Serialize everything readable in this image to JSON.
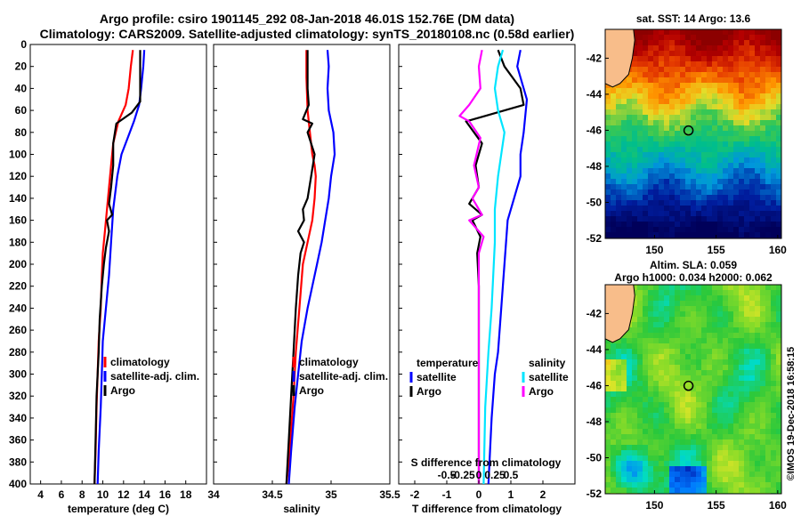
{
  "header": {
    "title_line1": "Argo profile: csiro 1901145_292 08-Jan-2018 46.01S 152.76E (DM data)",
    "title_line2": "Climatology: CARS2009. Satellite-adjusted climatology: synTS_20180108.nc (0.58d earlier)"
  },
  "side_text": "©IMOS 19-Dec-2018 16:58:15",
  "colors": {
    "climatology": "#ff0000",
    "satellite": "#0000ff",
    "argo": "#000000",
    "s_satellite": "#00e5ff",
    "s_argo": "#ff00ff",
    "land": "#f8bd8a"
  },
  "chart_data": [
    {
      "type": "line",
      "name": "temperature-profile",
      "xlabel": "temperature (deg C)",
      "xlim": [
        3,
        20
      ],
      "xticks": [
        4,
        6,
        8,
        10,
        12,
        14,
        16,
        18
      ],
      "ylim": [
        400,
        0
      ],
      "yticks": [
        0,
        20,
        40,
        60,
        80,
        100,
        120,
        140,
        160,
        180,
        200,
        220,
        240,
        260,
        280,
        300,
        320,
        340,
        360,
        380,
        400
      ],
      "legend": {
        "position": "lower-right",
        "entries": [
          "climatology",
          "satellite-adj. clim.",
          "Argo"
        ]
      },
      "series": [
        {
          "name": "climatology",
          "color": "#ff0000",
          "x": [
            12.9,
            12.7,
            12.5,
            12.2,
            11.5,
            11.0,
            10.8,
            10.6,
            10.4,
            10.2,
            10.0,
            9.9,
            9.8,
            9.6,
            9.5,
            9.4,
            9.3,
            9.2
          ],
          "y": [
            5,
            20,
            40,
            55,
            70,
            90,
            110,
            130,
            150,
            170,
            190,
            210,
            240,
            270,
            300,
            330,
            370,
            400
          ]
        },
        {
          "name": "satellite-adj. clim.",
          "color": "#0000ff",
          "x": [
            14.0,
            13.9,
            13.7,
            13.5,
            13.0,
            12.4,
            11.8,
            11.4,
            11.0,
            10.8,
            10.6,
            10.3,
            10.0,
            9.9,
            9.8,
            9.6,
            9.5
          ],
          "y": [
            5,
            20,
            40,
            55,
            70,
            85,
            100,
            120,
            150,
            180,
            210,
            240,
            270,
            300,
            330,
            370,
            400
          ]
        },
        {
          "name": "Argo",
          "color": "#000000",
          "x": [
            13.6,
            13.6,
            13.6,
            13.6,
            12.8,
            11.3,
            11.0,
            11.0,
            10.8,
            10.6,
            10.9,
            10.4,
            10.6,
            10.3,
            10.1,
            9.9,
            9.7,
            9.6,
            9.4,
            9.3,
            9.2
          ],
          "y": [
            5,
            20,
            40,
            52,
            62,
            72,
            90,
            110,
            130,
            145,
            155,
            160,
            170,
            185,
            200,
            220,
            250,
            280,
            320,
            360,
            400
          ]
        }
      ]
    },
    {
      "type": "line",
      "name": "salinity-profile",
      "xlabel": "salinity",
      "xlim": [
        34,
        35.5
      ],
      "xticks": [
        34,
        34.5,
        35,
        35.5
      ],
      "ylim": [
        400,
        0
      ],
      "legend": {
        "position": "lower-right",
        "entries": [
          "climatology",
          "satellite-adj. clim.",
          "Argo"
        ]
      },
      "series": [
        {
          "name": "climatology",
          "color": "#ff0000",
          "x": [
            34.79,
            34.79,
            34.8,
            34.82,
            34.84,
            34.86,
            34.87,
            34.86,
            34.84,
            34.8,
            34.76,
            34.73,
            34.7,
            34.68,
            34.66,
            34.64,
            34.62
          ],
          "y": [
            5,
            30,
            60,
            80,
            100,
            110,
            120,
            140,
            160,
            180,
            200,
            240,
            280,
            320,
            350,
            380,
            400
          ]
        },
        {
          "name": "satellite-adj. clim.",
          "color": "#0000ff",
          "x": [
            34.97,
            34.98,
            34.97,
            34.98,
            35.02,
            35.03,
            35.0,
            34.98,
            34.95,
            34.92,
            34.88,
            34.84,
            34.8,
            34.75,
            34.72,
            34.69,
            34.66,
            34.64
          ],
          "y": [
            5,
            20,
            40,
            60,
            80,
            100,
            120,
            140,
            160,
            180,
            200,
            220,
            240,
            270,
            300,
            330,
            370,
            400
          ]
        },
        {
          "name": "Argo",
          "color": "#000000",
          "x": [
            34.8,
            34.8,
            34.8,
            34.81,
            34.76,
            34.84,
            34.8,
            34.86,
            34.83,
            34.8,
            34.76,
            34.77,
            34.72,
            34.77,
            34.74,
            34.72,
            34.7,
            34.68,
            34.66,
            34.64,
            34.62
          ],
          "y": [
            5,
            20,
            40,
            55,
            68,
            72,
            80,
            100,
            120,
            140,
            150,
            160,
            170,
            180,
            190,
            210,
            240,
            280,
            320,
            360,
            400
          ]
        }
      ]
    },
    {
      "type": "line",
      "name": "difference-profile",
      "xlabel": "T difference from climatology",
      "secondary_xlabel": "S difference from climatology",
      "xlim": [
        -2.5,
        3.0
      ],
      "xticks": [
        -2,
        -1,
        0,
        1,
        2
      ],
      "secondary_xticks": [
        "-0.5",
        "-0.25",
        "0",
        "0.25",
        "0.5"
      ],
      "ylim": [
        400,
        0
      ],
      "legend": {
        "position": "lower",
        "temperature_title": "temperature",
        "salinity_title": "salinity",
        "entries": [
          "satellite",
          "Argo"
        ]
      },
      "series": [
        {
          "name": "T satellite",
          "color": "#0000ff",
          "x": [
            1.3,
            1.2,
            1.3,
            1.5,
            1.4,
            1.3,
            1.3,
            1.1,
            0.9,
            0.85,
            0.8,
            0.75,
            0.7,
            0.65,
            0.6,
            0.5,
            0.45,
            0.4,
            0.35,
            0.3
          ],
          "y": [
            5,
            20,
            30,
            50,
            80,
            100,
            120,
            140,
            160,
            180,
            200,
            220,
            240,
            260,
            280,
            300,
            320,
            340,
            370,
            400
          ]
        },
        {
          "name": "T Argo",
          "color": "#000000",
          "x": [
            0.6,
            0.8,
            1.3,
            1.4,
            0.2,
            -0.4,
            0.1,
            -0.1,
            0.0,
            -0.3,
            0.1,
            -0.2,
            0.05,
            -0.05,
            0.0,
            0.0,
            0.0,
            0.0
          ],
          "y": [
            5,
            20,
            40,
            55,
            65,
            70,
            90,
            110,
            130,
            145,
            155,
            160,
            175,
            190,
            220,
            260,
            320,
            400
          ]
        },
        {
          "name": "S satellite",
          "color": "#00e5ff",
          "x": [
            0.75,
            0.6,
            0.5,
            0.6,
            0.8,
            0.7,
            0.6,
            0.5,
            0.5,
            0.45,
            0.4,
            0.3,
            0.2,
            0.15
          ],
          "y": [
            5,
            20,
            40,
            60,
            80,
            100,
            120,
            150,
            180,
            210,
            240,
            280,
            330,
            400
          ]
        },
        {
          "name": "S Argo",
          "color": "#ff00ff",
          "x": [
            0.1,
            0.0,
            0.05,
            -0.3,
            -0.6,
            -0.3,
            0.05,
            -0.15,
            0.0,
            -0.2,
            0.1,
            -0.3,
            0.15,
            0.0,
            0.0,
            0.0,
            0.0
          ],
          "y": [
            5,
            20,
            40,
            55,
            65,
            70,
            85,
            110,
            130,
            140,
            155,
            160,
            175,
            190,
            240,
            320,
            400
          ]
        }
      ]
    },
    {
      "type": "heatmap",
      "name": "sst-map",
      "title": "sat. SST: 14 Argo: 13.6",
      "xlim": [
        146,
        160.3
      ],
      "ylim": [
        -52,
        -40.4
      ],
      "xticks": [
        150,
        155,
        160
      ],
      "yticks": [
        -42,
        -44,
        -46,
        -48,
        -50,
        -52
      ],
      "argo_position": {
        "lon": 152.76,
        "lat": -46.01
      }
    },
    {
      "type": "heatmap",
      "name": "sla-map",
      "title": "Altim. SLA: 0.059",
      "subtitle": "Argo h1000: 0.034 h2000: 0.062",
      "xlim": [
        146,
        160.3
      ],
      "ylim": [
        -52,
        -40.4
      ],
      "xticks": [
        150,
        155,
        160
      ],
      "yticks": [
        -42,
        -44,
        -46,
        -48,
        -50,
        -52
      ],
      "argo_position": {
        "lon": 152.76,
        "lat": -46.01
      }
    }
  ]
}
